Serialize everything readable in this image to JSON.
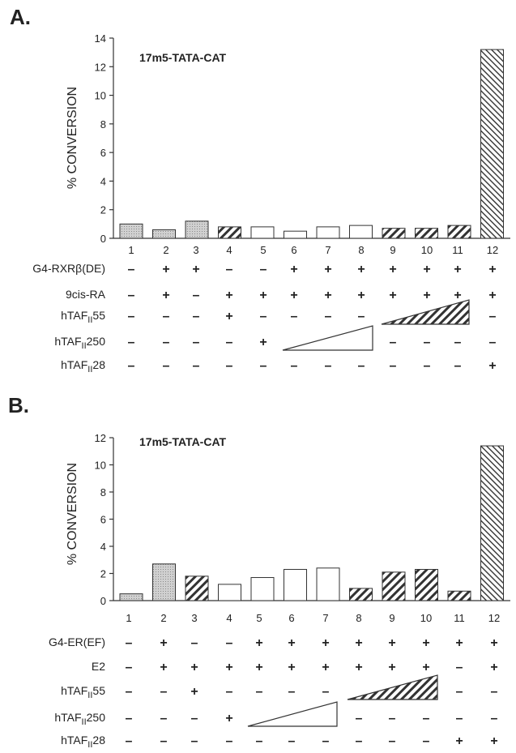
{
  "colors": {
    "stipple": "#c6c6c6",
    "hatch": "#444444",
    "open": "#ffffff",
    "outline": "#333333"
  },
  "chart_data": [
    {
      "panel": "A.",
      "type": "bar",
      "title": "17m5-TATA-CAT",
      "ylabel": "% CONVERSION",
      "xlabel": "",
      "ylim": [
        0,
        14
      ],
      "yticks": [
        "0",
        "2",
        "4",
        "6",
        "8",
        "10",
        "12",
        "14"
      ],
      "categories": [
        "1",
        "2",
        "3",
        "4",
        "5",
        "6",
        "7",
        "8",
        "9",
        "10",
        "11",
        "12"
      ],
      "values": [
        1.0,
        0.6,
        1.2,
        0.8,
        0.8,
        0.5,
        0.8,
        0.9,
        0.7,
        0.7,
        0.9,
        13.2
      ],
      "fills": [
        "stipple",
        "stipple",
        "stipple",
        "hatch",
        "open",
        "open",
        "open",
        "open",
        "hatch",
        "hatch",
        "hatch",
        "dense-hatch"
      ],
      "conditions": [
        {
          "label": "G4-RXRβ(DE)",
          "signs": [
            "-",
            "+",
            "+",
            "-",
            "-",
            "+",
            "+",
            "+",
            "+",
            "+",
            "+",
            "+"
          ]
        },
        {
          "label": "9cis-RA",
          "signs": [
            "-",
            "+",
            "-",
            "+",
            "+",
            "+",
            "+",
            "+",
            "+",
            "+",
            "+",
            "+"
          ]
        },
        {
          "label": "hTAFII55",
          "signs": [
            "-",
            "-",
            "-",
            "+",
            "-",
            "-",
            "-",
            "-",
            "",
            "",
            "",
            "-"
          ],
          "wedge": {
            "from": 9,
            "to": 11,
            "style": "hatched"
          }
        },
        {
          "label": "hTAFII250",
          "signs": [
            "-",
            "-",
            "-",
            "-",
            "+",
            "",
            "",
            "",
            "-",
            "-",
            "-",
            "-"
          ],
          "wedge": {
            "from": 6,
            "to": 8,
            "style": "open"
          }
        },
        {
          "label": "hTAFII28",
          "signs": [
            "-",
            "-",
            "-",
            "-",
            "-",
            "-",
            "-",
            "-",
            "-",
            "-",
            "-",
            "+"
          ]
        }
      ]
    },
    {
      "panel": "B.",
      "type": "bar",
      "title": "17m5-TATA-CAT",
      "ylabel": "% CONVERSION",
      "xlabel": "",
      "ylim": [
        0,
        12
      ],
      "yticks": [
        "0",
        "2",
        "4",
        "6",
        "8",
        "10",
        "12"
      ],
      "categories": [
        "1",
        "2",
        "3",
        "4",
        "5",
        "6",
        "7",
        "8",
        "9",
        "10",
        "11",
        "12"
      ],
      "values": [
        0.5,
        2.7,
        1.8,
        1.2,
        1.7,
        2.3,
        2.4,
        0.9,
        2.1,
        2.3,
        0.7,
        11.4
      ],
      "fills": [
        "stipple",
        "stipple",
        "hatch",
        "open",
        "open",
        "open",
        "open",
        "hatch",
        "hatch",
        "hatch",
        "hatch",
        "dense-hatch"
      ],
      "conditions": [
        {
          "label": "G4-ER(EF)",
          "signs": [
            "-",
            "+",
            "-",
            "-",
            "+",
            "+",
            "+",
            "+",
            "+",
            "+",
            "+",
            "+"
          ]
        },
        {
          "label": "E2",
          "signs": [
            "-",
            "+",
            "+",
            "+",
            "+",
            "+",
            "+",
            "+",
            "+",
            "+",
            "-",
            "+"
          ]
        },
        {
          "label": "hTAFII55",
          "signs": [
            "-",
            "-",
            "+",
            "-",
            "-",
            "-",
            "-",
            "",
            "",
            "",
            "-",
            "-"
          ],
          "wedge": {
            "from": 8,
            "to": 10,
            "style": "hatched"
          }
        },
        {
          "label": "hTAFII250",
          "signs": [
            "-",
            "-",
            "-",
            "+",
            "",
            "",
            "",
            "-",
            "-",
            "-",
            "-",
            "-"
          ],
          "wedge": {
            "from": 5,
            "to": 7,
            "style": "open"
          }
        },
        {
          "label": "hTAFII28",
          "signs": [
            "-",
            "-",
            "-",
            "-",
            "-",
            "-",
            "-",
            "-",
            "-",
            "-",
            "+",
            "+"
          ]
        }
      ]
    }
  ]
}
